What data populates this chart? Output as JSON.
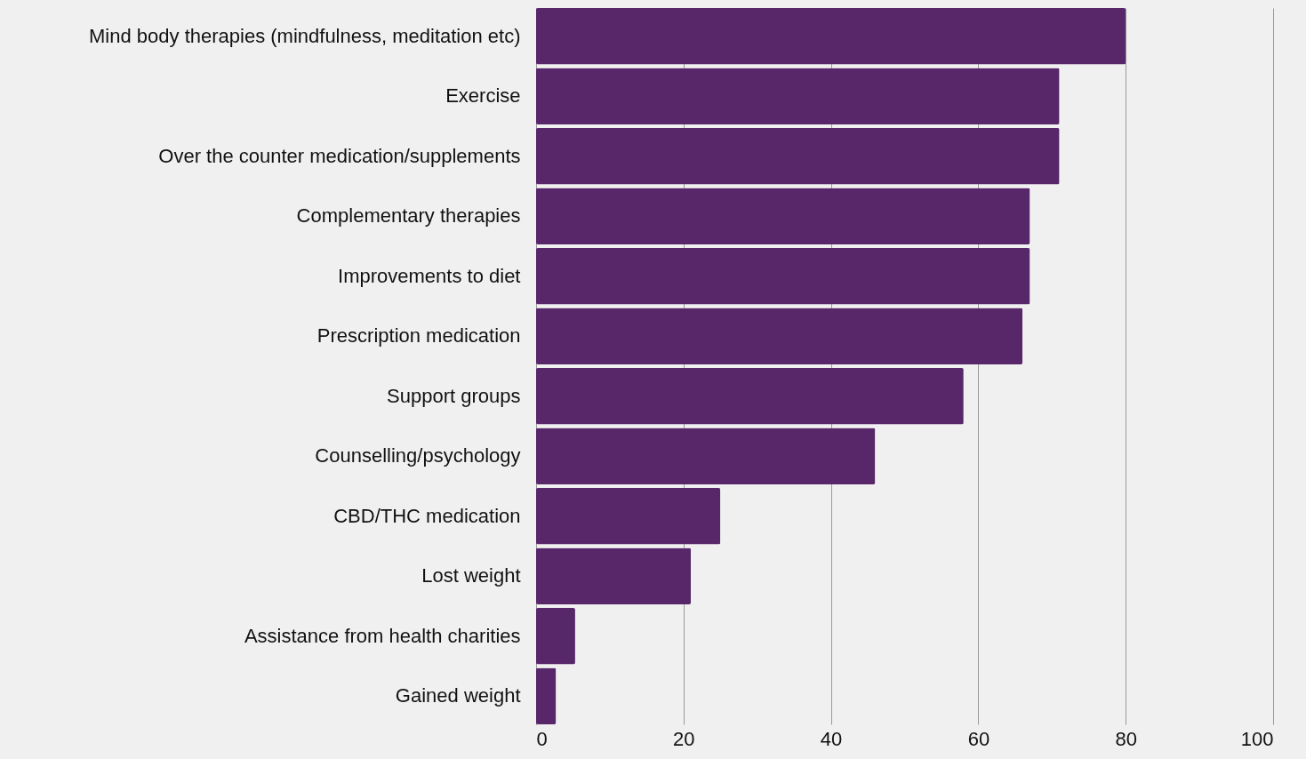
{
  "chart_data": {
    "type": "bar",
    "orientation": "horizontal",
    "categories": [
      "Mind body therapies (mindfulness, meditation etc)",
      "Exercise",
      "Over the counter medication/supplements",
      "Complementary therapies",
      "Improvements to diet",
      "Prescription medication",
      "Support groups",
      "Counselling/psychology",
      "CBD/THC medication",
      "Lost weight",
      "Assistance from health charities",
      "Gained weight"
    ],
    "values": [
      80,
      71,
      71,
      67,
      67,
      66,
      58,
      46,
      25,
      21,
      5.3,
      2.7
    ],
    "color": "#57276a",
    "xlim": [
      0,
      100
    ],
    "xticks": [
      0,
      20,
      40,
      60,
      80,
      100
    ],
    "grid": "x"
  }
}
